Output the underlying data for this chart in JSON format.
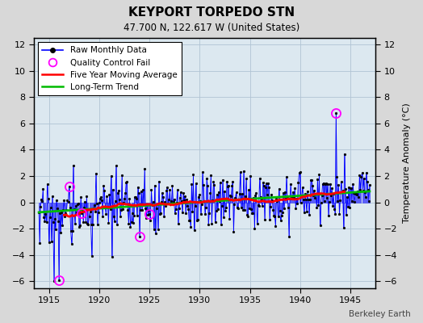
{
  "title": "KEYPORT TORPEDO STN",
  "subtitle": "47.700 N, 122.617 W (United States)",
  "watermark": "Berkeley Earth",
  "xlim": [
    1913.5,
    1947.5
  ],
  "ylim": [
    -6.5,
    12.5
  ],
  "yticks": [
    -6,
    -4,
    -2,
    0,
    2,
    4,
    6,
    8,
    10,
    12
  ],
  "xticks": [
    1915,
    1920,
    1925,
    1930,
    1935,
    1940,
    1945
  ],
  "ylabel": "Temperature Anomaly (°C)",
  "raw_color": "#0000ff",
  "ma_color": "#ff0000",
  "trend_color": "#00bb00",
  "qc_color": "#ff00ff",
  "bg_color": "#d8d8d8",
  "plot_bg": "#dce8f0",
  "grid_color": "#b0c4d4",
  "seed": 17
}
